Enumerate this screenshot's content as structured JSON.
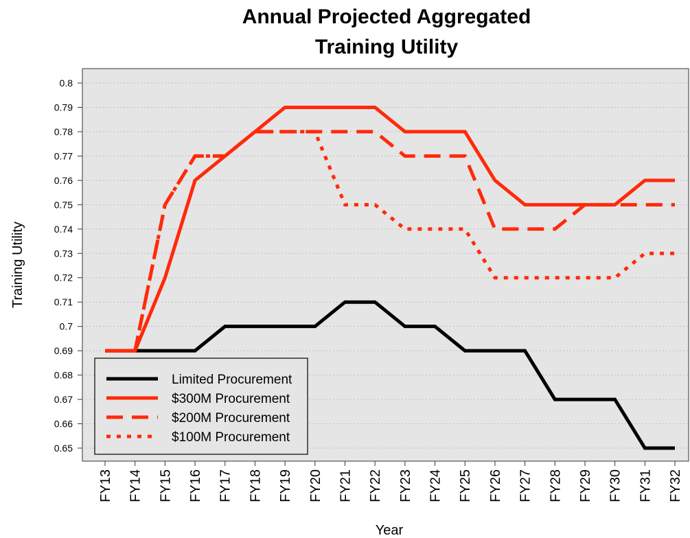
{
  "chart_data": {
    "type": "line",
    "title": [
      "Annual Projected Aggregated",
      "Training Utility"
    ],
    "xlabel": "Year",
    "ylabel": "Training Utility",
    "categories": [
      "FY13",
      "FY14",
      "FY15",
      "FY16",
      "FY17",
      "FY18",
      "FY19",
      "FY20",
      "FY21",
      "FY22",
      "FY23",
      "FY24",
      "FY25",
      "FY26",
      "FY27",
      "FY28",
      "FY29",
      "FY30",
      "FY31",
      "FY32"
    ],
    "series": [
      {
        "name": "Limited Procurement",
        "color": "#000000",
        "dash": "solid",
        "values": [
          0.69,
          0.69,
          0.69,
          0.69,
          0.7,
          0.7,
          0.7,
          0.7,
          0.71,
          0.71,
          0.7,
          0.7,
          0.69,
          0.69,
          0.69,
          0.67,
          0.67,
          0.67,
          0.65,
          0.65
        ]
      },
      {
        "name": "$300M Procurement",
        "color": "#ff2a0a",
        "dash": "solid",
        "values": [
          0.69,
          0.69,
          0.72,
          0.76,
          0.77,
          0.78,
          0.79,
          0.79,
          0.79,
          0.79,
          0.78,
          0.78,
          0.78,
          0.76,
          0.75,
          0.75,
          0.75,
          0.75,
          0.76,
          0.76
        ]
      },
      {
        "name": "$200M Procurement",
        "color": "#ff2a0a",
        "dash": "dashed",
        "values": [
          0.69,
          0.69,
          0.75,
          0.77,
          0.77,
          0.78,
          0.78,
          0.78,
          0.78,
          0.78,
          0.77,
          0.77,
          0.77,
          0.74,
          0.74,
          0.74,
          0.75,
          0.75,
          0.75,
          0.75
        ]
      },
      {
        "name": "$100M Procurement",
        "color": "#ff2a0a",
        "dash": "dotted",
        "values": [
          0.69,
          0.69,
          0.75,
          0.77,
          0.77,
          0.78,
          0.78,
          0.78,
          0.75,
          0.75,
          0.74,
          0.74,
          0.74,
          0.72,
          0.72,
          0.72,
          0.72,
          0.72,
          0.73,
          0.73
        ]
      }
    ],
    "ylim": [
      0.65,
      0.8
    ],
    "yticks": [
      0.65,
      0.66,
      0.67,
      0.68,
      0.69,
      0.7,
      0.71,
      0.72,
      0.73,
      0.74,
      0.75,
      0.76,
      0.77,
      0.78,
      0.79,
      0.8
    ],
    "grid": true,
    "legend": "bottom-left"
  }
}
